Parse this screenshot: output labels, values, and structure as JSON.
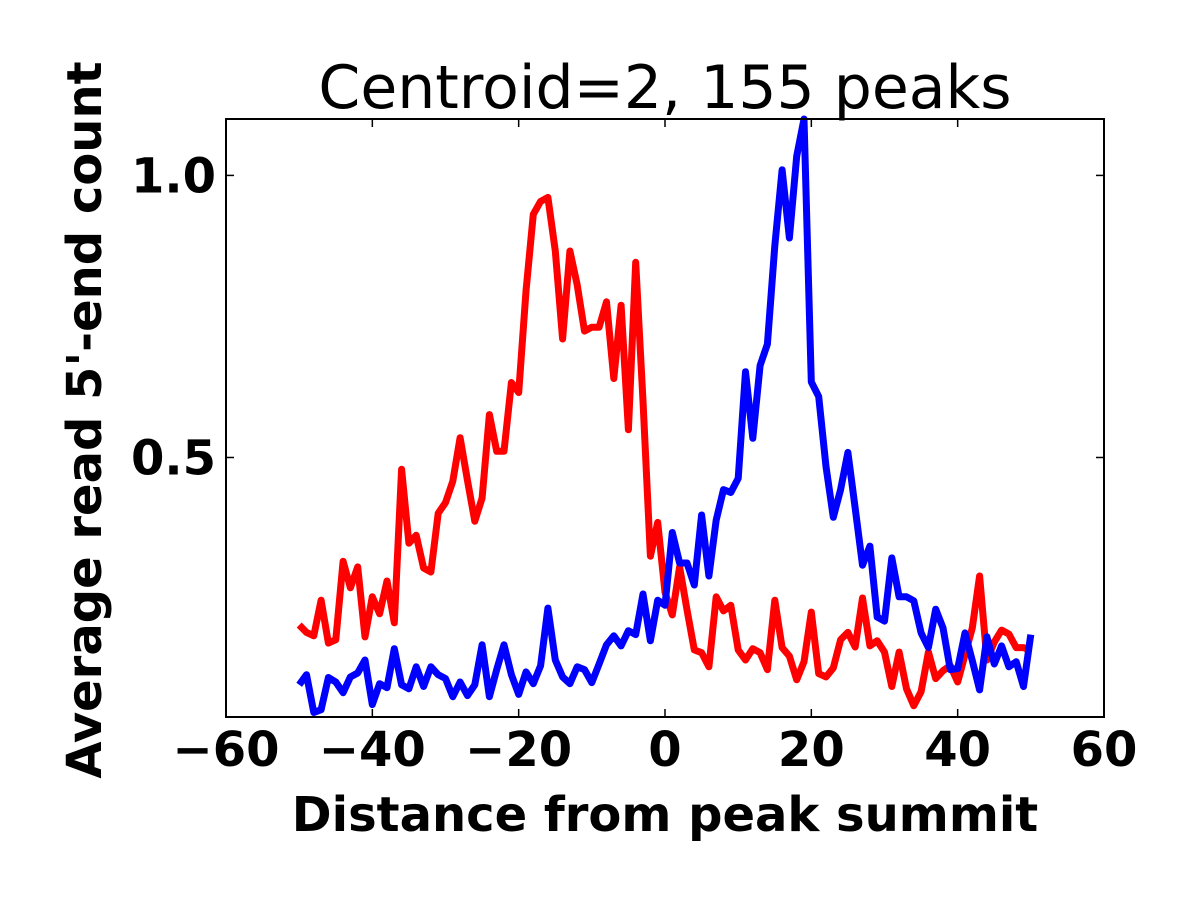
{
  "chart_data": {
    "type": "line",
    "title": "Centroid=2, 155 peaks",
    "xlabel": "Distance from peak summit",
    "ylabel": "Average read 5'-end count",
    "xlim": [
      -60,
      60
    ],
    "ylim": [
      0.04,
      1.1
    ],
    "xticks": [
      -60,
      -40,
      -20,
      0,
      20,
      40,
      60
    ],
    "xtick_labels": [
      "−60",
      "−40",
      "−20",
      "0",
      "20",
      "40",
      "60"
    ],
    "yticks": [
      0.5,
      1.0
    ],
    "ytick_labels": [
      "0.5",
      "1.0"
    ],
    "grid": false,
    "x_start": -50,
    "x_step": 1,
    "series": [
      {
        "name": "red",
        "color": "#ff0000",
        "values": [
          0.203,
          0.19,
          0.184,
          0.247,
          0.171,
          0.177,
          0.316,
          0.269,
          0.306,
          0.182,
          0.253,
          0.223,
          0.281,
          0.207,
          0.479,
          0.348,
          0.362,
          0.304,
          0.297,
          0.401,
          0.42,
          0.458,
          0.535,
          0.459,
          0.387,
          0.428,
          0.576,
          0.511,
          0.511,
          0.633,
          0.615,
          0.795,
          0.931,
          0.954,
          0.961,
          0.866,
          0.71,
          0.866,
          0.806,
          0.724,
          0.731,
          0.731,
          0.776,
          0.64,
          0.77,
          0.549,
          0.846,
          0.6,
          0.325,
          0.385,
          0.261,
          0.221,
          0.306,
          0.23,
          0.159,
          0.154,
          0.129,
          0.253,
          0.228,
          0.238,
          0.159,
          0.141,
          0.161,
          0.154,
          0.124,
          0.247,
          0.163,
          0.148,
          0.106,
          0.138,
          0.226,
          0.117,
          0.111,
          0.127,
          0.177,
          0.19,
          0.164,
          0.251,
          0.166,
          0.175,
          0.155,
          0.094,
          0.155,
          0.09,
          0.06,
          0.085,
          0.155,
          0.108,
          0.122,
          0.131,
          0.102,
          0.15,
          0.198,
          0.29,
          0.141,
          0.173,
          0.194,
          0.187,
          0.163,
          0.163,
          0.157
        ]
      },
      {
        "name": "blue",
        "color": "#0000ff",
        "values": [
          0.097,
          0.115,
          0.048,
          0.053,
          0.11,
          0.102,
          0.083,
          0.111,
          0.118,
          0.141,
          0.062,
          0.099,
          0.092,
          0.161,
          0.097,
          0.09,
          0.129,
          0.094,
          0.129,
          0.115,
          0.108,
          0.076,
          0.102,
          0.078,
          0.097,
          0.168,
          0.076,
          0.124,
          0.168,
          0.115,
          0.08,
          0.12,
          0.099,
          0.131,
          0.233,
          0.141,
          0.111,
          0.099,
          0.129,
          0.124,
          0.101,
          0.134,
          0.168,
          0.184,
          0.166,
          0.193,
          0.186,
          0.258,
          0.175,
          0.247,
          0.238,
          0.367,
          0.313,
          0.313,
          0.274,
          0.398,
          0.29,
          0.389,
          0.443,
          0.438,
          0.463,
          0.652,
          0.534,
          0.663,
          0.701,
          0.875,
          1.01,
          0.889,
          1.034,
          1.1,
          0.634,
          0.608,
          0.484,
          0.394,
          0.443,
          0.509,
          0.41,
          0.309,
          0.343,
          0.217,
          0.21,
          0.322,
          0.253,
          0.253,
          0.246,
          0.189,
          0.163,
          0.231,
          0.198,
          0.124,
          0.126,
          0.189,
          0.14,
          0.088,
          0.182,
          0.134,
          0.166,
          0.129,
          0.138,
          0.094,
          0.186
        ]
      }
    ]
  }
}
